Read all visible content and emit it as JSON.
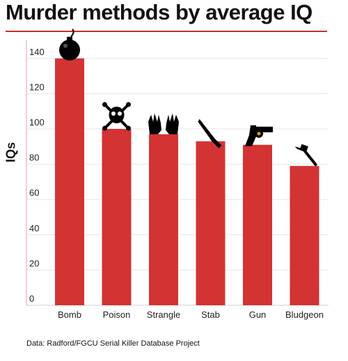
{
  "chart_data": {
    "type": "bar",
    "title": "Murder methods by average IQ",
    "ylabel": "IQs",
    "xlabel": "",
    "categories": [
      "Bomb",
      "Poison",
      "Strangle",
      "Stab",
      "Gun",
      "Bludgeon"
    ],
    "values": [
      140,
      100,
      97,
      93,
      91,
      79
    ],
    "icons": [
      "bomb-icon",
      "skull-crossbones-icon",
      "hands-icon",
      "knife-icon",
      "revolver-icon",
      "hammer-icon"
    ],
    "ylim": [
      0,
      150
    ],
    "yticks": [
      0,
      20,
      40,
      60,
      80,
      100,
      120,
      140
    ],
    "grid": true,
    "bar_color": "#d33333",
    "source": "Data: Radford/FGCU Serial Killer Database Project"
  }
}
